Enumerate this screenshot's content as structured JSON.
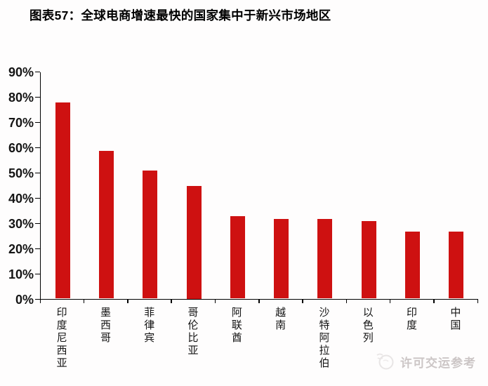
{
  "title": "图表57：全球电商增速最快的国家集中于新兴市场地区",
  "watermark": {
    "text": "许可交运参考",
    "icon": "circular-logo-icon"
  },
  "colors": {
    "bar": "#CE1111",
    "axis": "#000000",
    "tick_label": "#141414",
    "watermark": "#CCC6C6",
    "background": "#FEFDFD"
  },
  "chart_data": {
    "type": "bar",
    "title": "图表57：全球电商增速最快的国家集中于新兴市场地区",
    "categories": [
      "印度尼西亚",
      "墨西哥",
      "菲律宾",
      "哥伦比亚",
      "阿联酋",
      "越南",
      "沙特阿拉伯",
      "以色列",
      "印度",
      "中国"
    ],
    "values": [
      78,
      59,
      51,
      45,
      33,
      32,
      32,
      31,
      27,
      27
    ],
    "unit": "%",
    "xlabel": "",
    "ylabel": "",
    "ylim": [
      0,
      90
    ],
    "ytick_step": 10,
    "ytick_labels": [
      "0%",
      "10%",
      "20%",
      "30%",
      "40%",
      "50%",
      "60%",
      "70%",
      "80%",
      "90%"
    ],
    "grid": false,
    "legend": null,
    "bar_color": "#CE1111",
    "label_orientation": "vertical"
  }
}
